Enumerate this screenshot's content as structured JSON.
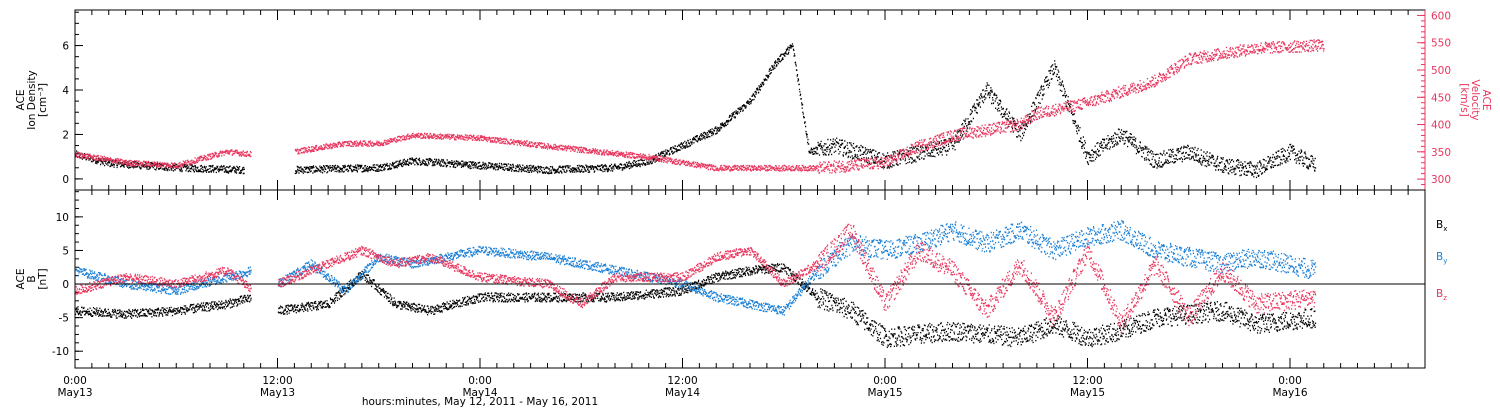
{
  "chart_data": [
    {
      "type": "scatter",
      "panel": "plasma",
      "ylabel_left_lines": [
        "ACE",
        "Ion Density",
        "[cm⁻³]"
      ],
      "ylabel_right_lines": [
        "ACE",
        "Velocity",
        "[km/s]"
      ],
      "ylim_left": [
        -0.5,
        7.6
      ],
      "ylim_right": [
        280,
        610
      ],
      "yticks_left": [
        0,
        2,
        4,
        6
      ],
      "yticks_right": [
        300,
        350,
        400,
        450,
        500,
        550,
        600
      ],
      "series": [
        {
          "axis": "left",
          "color": "#000000",
          "knots": [
            [
              0,
              1.1
            ],
            [
              2,
              0.7
            ],
            [
              6,
              0.5
            ],
            [
              10,
              0.4
            ],
            [
              11.5,
              null
            ],
            [
              13,
              0.4
            ],
            [
              18,
              0.5
            ],
            [
              20,
              0.8
            ],
            [
              24,
              0.6
            ],
            [
              28,
              0.4
            ],
            [
              32,
              0.5
            ],
            [
              34,
              0.8
            ],
            [
              36,
              1.5
            ],
            [
              38,
              2.2
            ],
            [
              40,
              3.5
            ],
            [
              41.5,
              5.2
            ],
            [
              42.5,
              6.0
            ],
            [
              43.5,
              1.2
            ],
            [
              45,
              1.5
            ],
            [
              48,
              0.8
            ],
            [
              52,
              1.5
            ],
            [
              54,
              4.0
            ],
            [
              56,
              2.0
            ],
            [
              58,
              5.0
            ],
            [
              60,
              1.0
            ],
            [
              62,
              2.0
            ],
            [
              64,
              0.8
            ],
            [
              66,
              1.2
            ],
            [
              68,
              0.6
            ],
            [
              70,
              0.4
            ],
            [
              72,
              1.2
            ],
            [
              73.5,
              0.6
            ]
          ]
        },
        {
          "axis": "right",
          "color": "#e8365e",
          "knots": [
            [
              0,
              345
            ],
            [
              3,
              330
            ],
            [
              6,
              325
            ],
            [
              9,
              350
            ],
            [
              10.5,
              345
            ],
            [
              11.5,
              null
            ],
            [
              13,
              350
            ],
            [
              16,
              365
            ],
            [
              18,
              365
            ],
            [
              20,
              380
            ],
            [
              24,
              375
            ],
            [
              28,
              360
            ],
            [
              34,
              340
            ],
            [
              38,
              320
            ],
            [
              44,
              320
            ],
            [
              48,
              330
            ],
            [
              50,
              360
            ],
            [
              52,
              380
            ],
            [
              56,
              400
            ],
            [
              57,
              420
            ],
            [
              60,
              440
            ],
            [
              62,
              460
            ],
            [
              64,
              480
            ],
            [
              66,
              520
            ],
            [
              70,
              540
            ],
            [
              74,
              545
            ]
          ]
        }
      ],
      "gaps_h": [
        [
          10.4,
          11.4
        ]
      ]
    },
    {
      "type": "scatter",
      "panel": "magnetic-field",
      "ylabel_left_lines": [
        "ACE",
        "B",
        "[nT]"
      ],
      "ylim": [
        -12.5,
        14
      ],
      "yticks": [
        -10,
        -5,
        0,
        5,
        10
      ],
      "zero_line": true,
      "legend": [
        {
          "label": "Bx",
          "sub": "x",
          "color": "#000000"
        },
        {
          "label": "By",
          "sub": "y",
          "color": "#1a7fd6"
        },
        {
          "label": "Bz",
          "sub": "z",
          "color": "#e8365e"
        }
      ],
      "series": [
        {
          "name": "Bx",
          "color": "#000000",
          "knots": [
            [
              0,
              -4
            ],
            [
              3,
              -4.5
            ],
            [
              6,
              -4
            ],
            [
              9,
              -3
            ],
            [
              10.5,
              -2
            ],
            [
              11.5,
              null
            ],
            [
              12,
              -4
            ],
            [
              15,
              -3
            ],
            [
              17,
              1.5
            ],
            [
              19,
              -3
            ],
            [
              21,
              -4
            ],
            [
              24,
              -2
            ],
            [
              28,
              -2
            ],
            [
              32,
              -2
            ],
            [
              36,
              -1
            ],
            [
              38,
              1
            ],
            [
              40,
              2
            ],
            [
              42,
              2.5
            ],
            [
              44,
              -2
            ],
            [
              46,
              -4
            ],
            [
              48,
              -8
            ],
            [
              52,
              -7
            ],
            [
              56,
              -8
            ],
            [
              58,
              -6
            ],
            [
              60,
              -8
            ],
            [
              62,
              -7
            ],
            [
              64,
              -5
            ],
            [
              68,
              -4
            ],
            [
              70,
              -6
            ],
            [
              73.5,
              -5
            ]
          ]
        },
        {
          "name": "By",
          "color": "#1a7fd6",
          "knots": [
            [
              0,
              2
            ],
            [
              3,
              0
            ],
            [
              6,
              -1
            ],
            [
              9,
              1
            ],
            [
              10.5,
              2
            ],
            [
              11.5,
              null
            ],
            [
              12,
              0
            ],
            [
              14,
              3
            ],
            [
              16,
              -1
            ],
            [
              18,
              4
            ],
            [
              20,
              3
            ],
            [
              24,
              5
            ],
            [
              28,
              4
            ],
            [
              32,
              2
            ],
            [
              36,
              0
            ],
            [
              38,
              -2
            ],
            [
              40,
              -3
            ],
            [
              42,
              -4
            ],
            [
              44,
              2
            ],
            [
              46,
              6
            ],
            [
              48,
              5
            ],
            [
              50,
              6
            ],
            [
              52,
              8
            ],
            [
              54,
              6
            ],
            [
              56,
              8
            ],
            [
              58,
              5
            ],
            [
              60,
              7
            ],
            [
              62,
              8
            ],
            [
              64,
              5
            ],
            [
              68,
              3
            ],
            [
              70,
              4
            ],
            [
              73.5,
              2
            ]
          ]
        },
        {
          "name": "Bz",
          "color": "#e8365e",
          "knots": [
            [
              0,
              -1
            ],
            [
              3,
              1
            ],
            [
              6,
              0
            ],
            [
              9,
              2
            ],
            [
              10.5,
              -1
            ],
            [
              11.5,
              null
            ],
            [
              12,
              0
            ],
            [
              15,
              3
            ],
            [
              17,
              5
            ],
            [
              19,
              3
            ],
            [
              21,
              4
            ],
            [
              24,
              1
            ],
            [
              28,
              0
            ],
            [
              30,
              -3
            ],
            [
              32,
              1
            ],
            [
              36,
              1
            ],
            [
              38,
              4
            ],
            [
              40,
              5
            ],
            [
              42,
              0
            ],
            [
              44,
              3
            ],
            [
              46,
              8
            ],
            [
              48,
              -3
            ],
            [
              50,
              5
            ],
            [
              52,
              2
            ],
            [
              54,
              -4
            ],
            [
              56,
              3
            ],
            [
              58,
              -5
            ],
            [
              60,
              5
            ],
            [
              62,
              -6
            ],
            [
              64,
              3
            ],
            [
              66,
              -5
            ],
            [
              68,
              2
            ],
            [
              70,
              -3
            ],
            [
              73.5,
              -2
            ]
          ]
        }
      ],
      "gaps_h": [
        [
          10.4,
          11.4
        ]
      ]
    }
  ],
  "time_axis": {
    "xlim_hours": [
      0,
      80
    ],
    "major_ticks": [
      {
        "hours": 0,
        "time": "0:00",
        "date": "May13"
      },
      {
        "hours": 12,
        "time": "12:00",
        "date": "May13"
      },
      {
        "hours": 24,
        "time": "0:00",
        "date": "May14"
      },
      {
        "hours": 36,
        "time": "12:00",
        "date": "May14"
      },
      {
        "hours": 48,
        "time": "0:00",
        "date": "May15"
      },
      {
        "hours": 60,
        "time": "12:00",
        "date": "May15"
      },
      {
        "hours": 72,
        "time": "0:00",
        "date": "May16"
      }
    ],
    "minor_step_hours": 1,
    "xlabel": "hours:minutes, May 12, 2011 - May 16, 2011"
  }
}
